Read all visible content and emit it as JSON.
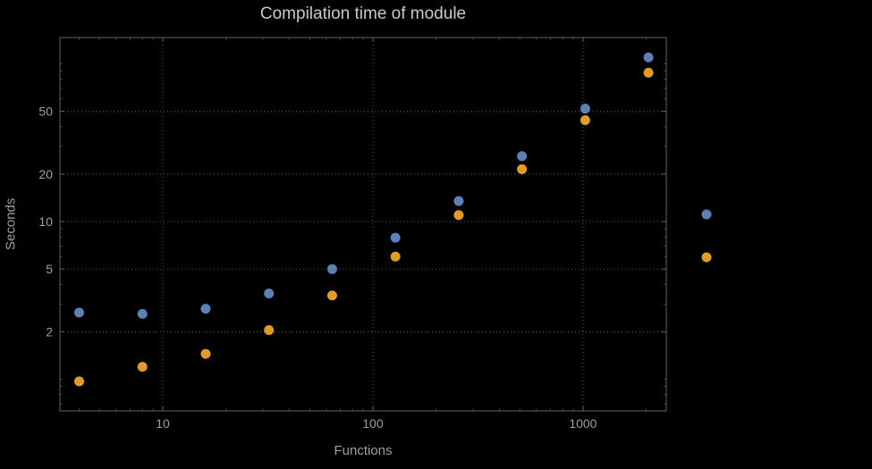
{
  "chart_data": {
    "type": "scatter",
    "title": "Compilation time of module",
    "xlabel": "Functions",
    "ylabel": "Seconds",
    "x_scale": "log",
    "y_scale": "log",
    "xlim": [
      3.24,
      2490
    ],
    "ylim": [
      0.63,
      147
    ],
    "x_ticks": [
      10,
      100,
      1000
    ],
    "y_ticks": [
      2,
      5,
      10,
      20,
      50
    ],
    "grid": true,
    "x": [
      4,
      8,
      16,
      32,
      64,
      128,
      256,
      512,
      1024,
      2048
    ],
    "series": [
      {
        "name": "blue",
        "color": "#5e81b5",
        "values": [
          2.65,
          2.6,
          2.8,
          3.5,
          5.0,
          7.9,
          13.5,
          26,
          52,
          110
        ]
      },
      {
        "name": "orange",
        "color": "#e19c24",
        "values": [
          0.97,
          1.2,
          1.45,
          2.05,
          3.4,
          6.0,
          11,
          21.5,
          44,
          88
        ]
      }
    ],
    "legend": {
      "position": "right",
      "entries": [
        {
          "series": "blue",
          "color": "#5e81b5"
        },
        {
          "series": "orange",
          "color": "#e19c24"
        }
      ]
    }
  },
  "colors": {
    "background": "#000000",
    "frame": "#616161",
    "grid": "#585858",
    "tick_label": "#9e9e9e",
    "axis_label": "#9e9e9e",
    "title": "#c9c9c9"
  }
}
